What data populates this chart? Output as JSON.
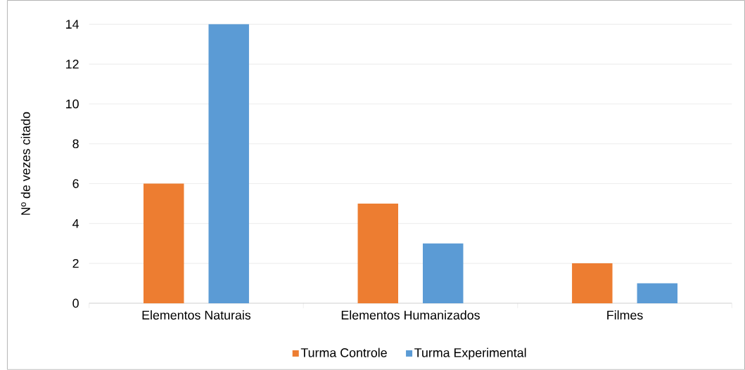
{
  "chart_data": {
    "type": "bar",
    "ylabel": "Nº de vezes citado",
    "categories": [
      "Elementos Naturais",
      "Elementos Humanizados",
      "Filmes"
    ],
    "series": [
      {
        "name": "Turma Controle",
        "color": "#ed7d31",
        "values": [
          6,
          5,
          2
        ]
      },
      {
        "name": "Turma Experimental",
        "color": "#5b9bd5",
        "values": [
          14,
          3,
          1
        ]
      }
    ],
    "ylim": [
      0,
      14
    ],
    "yticks": [
      0,
      2,
      4,
      6,
      8,
      10,
      12,
      14
    ],
    "grid": "y",
    "legend": "bottom"
  }
}
